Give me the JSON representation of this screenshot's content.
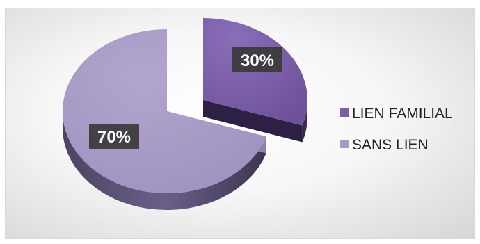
{
  "chart_data": {
    "type": "pie",
    "title": "",
    "categories": [
      "LIEN FAMILIAL",
      "SANS LIEN"
    ],
    "values": [
      30,
      70
    ],
    "data_labels": [
      "30%",
      "70%"
    ],
    "colors": {
      "top": [
        "#7b5ea7",
        "#a89bc6"
      ],
      "side": [
        "#3d2a57",
        "#5b5073"
      ]
    },
    "exploded_slice": "LIEN FAMILIAL",
    "legend_position": "right",
    "style": "3d-exploded"
  }
}
